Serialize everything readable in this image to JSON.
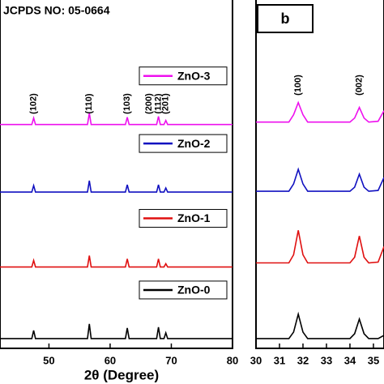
{
  "chart_data": [
    {
      "type": "line",
      "title": "JCPDS NO: 05-0664",
      "x_label": "2θ (Degree)",
      "x": [
        42,
        47.2,
        47.5,
        47.8,
        56.3,
        56.6,
        56.9,
        62.5,
        62.8,
        63.1,
        67.6,
        67.9,
        68.2,
        68.8,
        69.1,
        69.4,
        80
      ],
      "xlim": [
        42,
        80
      ],
      "xticks": [
        50,
        60,
        70,
        80
      ],
      "ylim": [
        0,
        430
      ],
      "series": [
        {
          "name": "ZnO-0",
          "color": "#000000",
          "values": [
            12,
            12,
            22,
            12,
            12,
            30,
            12,
            12,
            25,
            12,
            12,
            26,
            12,
            12,
            19,
            12,
            12
          ]
        },
        {
          "name": "ZnO-1",
          "color": "#e01010",
          "values": [
            100,
            100,
            108,
            100,
            100,
            114,
            100,
            100,
            110,
            100,
            100,
            110,
            100,
            100,
            104,
            100,
            100
          ]
        },
        {
          "name": "ZnO-2",
          "color": "#1010c0",
          "values": [
            192,
            192,
            200,
            192,
            192,
            206,
            192,
            192,
            201,
            192,
            192,
            201,
            192,
            192,
            197,
            192,
            192
          ]
        },
        {
          "name": "ZnO-3",
          "color": "#ee10ee",
          "values": [
            275,
            275,
            283,
            275,
            275,
            289,
            275,
            275,
            284,
            275,
            275,
            285,
            275,
            275,
            280,
            275,
            275
          ]
        }
      ],
      "annotations": [
        {
          "text": "(102)",
          "x": 47.5
        },
        {
          "text": "(110)",
          "x": 56.6
        },
        {
          "text": "(103)",
          "x": 62.8
        },
        {
          "text": "(200)",
          "x": 66.4
        },
        {
          "text": "(112)",
          "x": 67.9
        },
        {
          "text": "(201)",
          "x": 69.1
        }
      ]
    },
    {
      "type": "line",
      "panel_label": "b",
      "x": [
        30,
        31.4,
        31.6,
        31.8,
        32.0,
        32.2,
        34.0,
        34.2,
        34.4,
        34.6,
        34.8,
        35.2,
        35.45
      ],
      "xlim": [
        30,
        35.45
      ],
      "xticks": [
        30,
        31,
        32,
        33,
        34,
        35
      ],
      "ylim": [
        0,
        430
      ],
      "series": [
        {
          "name": "ZnO-0",
          "color": "#000000",
          "values": [
            12,
            12,
            20,
            42,
            20,
            12,
            12,
            18,
            36,
            18,
            12,
            12,
            16
          ]
        },
        {
          "name": "ZnO-1",
          "color": "#e01010",
          "values": [
            105,
            105,
            115,
            145,
            115,
            105,
            105,
            112,
            138,
            112,
            105,
            106,
            125
          ]
        },
        {
          "name": "ZnO-2",
          "color": "#1010c0",
          "values": [
            193,
            193,
            202,
            220,
            202,
            193,
            193,
            198,
            214,
            198,
            193,
            194,
            210
          ]
        },
        {
          "name": "ZnO-3",
          "color": "#ee10ee",
          "values": [
            278,
            278,
            287,
            302,
            287,
            278,
            278,
            283,
            296,
            283,
            278,
            279,
            292
          ]
        }
      ],
      "annotations": [
        {
          "text": "(100)",
          "x": 31.8
        },
        {
          "text": "(002)",
          "x": 34.4
        }
      ]
    }
  ]
}
